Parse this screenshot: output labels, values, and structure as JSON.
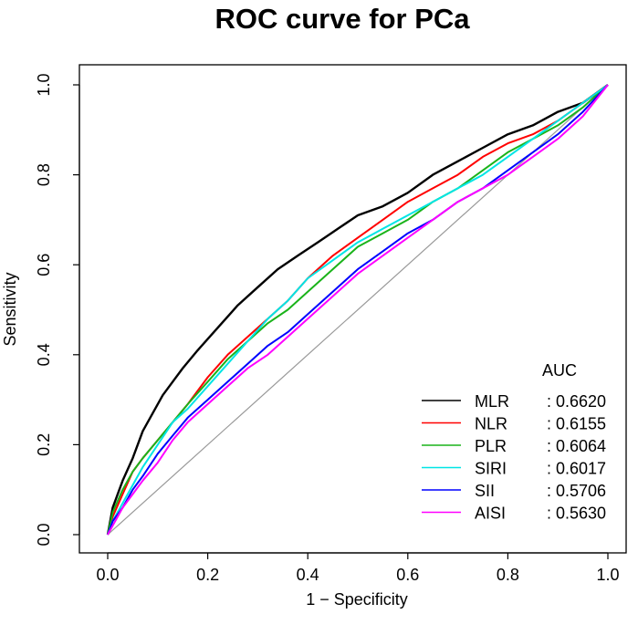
{
  "chart_data": {
    "type": "line",
    "title": "ROC curve for PCa",
    "xlabel": "1 − Specificity",
    "ylabel": "Sensitivity",
    "xlim": [
      0,
      1
    ],
    "ylim": [
      0,
      1
    ],
    "x_ticks": [
      0.0,
      0.2,
      0.4,
      0.6,
      0.8,
      1.0
    ],
    "y_ticks": [
      0.0,
      0.2,
      0.4,
      0.6,
      0.8,
      1.0
    ],
    "x_tick_labels": [
      "0.0",
      "0.2",
      "0.4",
      "0.6",
      "0.8",
      "1.0"
    ],
    "y_tick_labels": [
      "0.0",
      "0.2",
      "0.4",
      "0.6",
      "0.8",
      "1.0"
    ],
    "reference_line": {
      "x": [
        0,
        1
      ],
      "y": [
        0,
        1
      ],
      "color": "#999999"
    },
    "legend": {
      "title": "AUC",
      "position": "bottom-right"
    },
    "series": [
      {
        "name": "MLR",
        "auc_label": ": 0.6620",
        "color": "#000000",
        "x": [
          0,
          0.01,
          0.03,
          0.05,
          0.07,
          0.09,
          0.11,
          0.13,
          0.15,
          0.18,
          0.22,
          0.26,
          0.3,
          0.34,
          0.38,
          0.42,
          0.46,
          0.5,
          0.55,
          0.6,
          0.65,
          0.7,
          0.75,
          0.8,
          0.85,
          0.9,
          0.95,
          1.0
        ],
        "y": [
          0,
          0.06,
          0.12,
          0.17,
          0.23,
          0.27,
          0.31,
          0.34,
          0.37,
          0.41,
          0.46,
          0.51,
          0.55,
          0.59,
          0.62,
          0.65,
          0.68,
          0.71,
          0.73,
          0.76,
          0.8,
          0.83,
          0.86,
          0.89,
          0.91,
          0.94,
          0.96,
          1.0
        ]
      },
      {
        "name": "NLR",
        "auc_label": ": 0.6155",
        "color": "#ff0000",
        "x": [
          0,
          0.01,
          0.03,
          0.05,
          0.07,
          0.1,
          0.13,
          0.16,
          0.2,
          0.24,
          0.28,
          0.32,
          0.36,
          0.4,
          0.45,
          0.5,
          0.55,
          0.6,
          0.65,
          0.7,
          0.75,
          0.8,
          0.85,
          0.9,
          0.95,
          1.0
        ],
        "y": [
          0,
          0.04,
          0.09,
          0.14,
          0.17,
          0.21,
          0.25,
          0.29,
          0.35,
          0.4,
          0.44,
          0.48,
          0.52,
          0.57,
          0.62,
          0.66,
          0.7,
          0.74,
          0.77,
          0.8,
          0.84,
          0.87,
          0.89,
          0.92,
          0.96,
          1.0
        ]
      },
      {
        "name": "PLR",
        "auc_label": ": 0.6064",
        "color": "#1ab31a",
        "x": [
          0,
          0.01,
          0.03,
          0.05,
          0.07,
          0.1,
          0.13,
          0.16,
          0.2,
          0.24,
          0.28,
          0.32,
          0.36,
          0.4,
          0.45,
          0.5,
          0.55,
          0.6,
          0.65,
          0.7,
          0.75,
          0.8,
          0.85,
          0.9,
          0.95,
          1.0
        ],
        "y": [
          0,
          0.05,
          0.1,
          0.14,
          0.17,
          0.21,
          0.25,
          0.29,
          0.34,
          0.39,
          0.43,
          0.47,
          0.5,
          0.54,
          0.59,
          0.64,
          0.67,
          0.7,
          0.74,
          0.77,
          0.81,
          0.85,
          0.88,
          0.91,
          0.95,
          1.0
        ]
      },
      {
        "name": "SIRI",
        "auc_label": ": 0.6017",
        "color": "#00e5e5",
        "x": [
          0,
          0.01,
          0.03,
          0.05,
          0.07,
          0.1,
          0.13,
          0.16,
          0.2,
          0.24,
          0.28,
          0.32,
          0.36,
          0.4,
          0.45,
          0.5,
          0.55,
          0.6,
          0.65,
          0.7,
          0.75,
          0.8,
          0.85,
          0.9,
          0.95,
          1.0
        ],
        "y": [
          0,
          0.03,
          0.07,
          0.11,
          0.15,
          0.2,
          0.25,
          0.28,
          0.33,
          0.38,
          0.43,
          0.48,
          0.52,
          0.57,
          0.61,
          0.65,
          0.68,
          0.71,
          0.74,
          0.77,
          0.8,
          0.84,
          0.88,
          0.92,
          0.96,
          1.0
        ]
      },
      {
        "name": "SII",
        "auc_label": ": 0.5706",
        "color": "#0000ff",
        "x": [
          0,
          0.01,
          0.03,
          0.05,
          0.07,
          0.1,
          0.13,
          0.16,
          0.2,
          0.24,
          0.28,
          0.32,
          0.36,
          0.4,
          0.45,
          0.5,
          0.55,
          0.6,
          0.65,
          0.7,
          0.75,
          0.8,
          0.85,
          0.9,
          0.95,
          1.0
        ],
        "y": [
          0,
          0.03,
          0.06,
          0.1,
          0.13,
          0.18,
          0.22,
          0.26,
          0.3,
          0.34,
          0.38,
          0.42,
          0.45,
          0.49,
          0.54,
          0.59,
          0.63,
          0.67,
          0.7,
          0.74,
          0.77,
          0.81,
          0.85,
          0.89,
          0.94,
          1.0
        ]
      },
      {
        "name": "AISI",
        "auc_label": ": 0.5630",
        "color": "#ff00ff",
        "x": [
          0,
          0.01,
          0.03,
          0.05,
          0.07,
          0.1,
          0.13,
          0.16,
          0.2,
          0.24,
          0.28,
          0.32,
          0.36,
          0.4,
          0.45,
          0.5,
          0.55,
          0.6,
          0.65,
          0.7,
          0.75,
          0.8,
          0.85,
          0.9,
          0.95,
          1.0
        ],
        "y": [
          0,
          0.02,
          0.06,
          0.09,
          0.12,
          0.16,
          0.21,
          0.25,
          0.29,
          0.33,
          0.37,
          0.4,
          0.44,
          0.48,
          0.53,
          0.58,
          0.62,
          0.66,
          0.7,
          0.74,
          0.77,
          0.8,
          0.84,
          0.88,
          0.93,
          1.0
        ]
      }
    ]
  }
}
